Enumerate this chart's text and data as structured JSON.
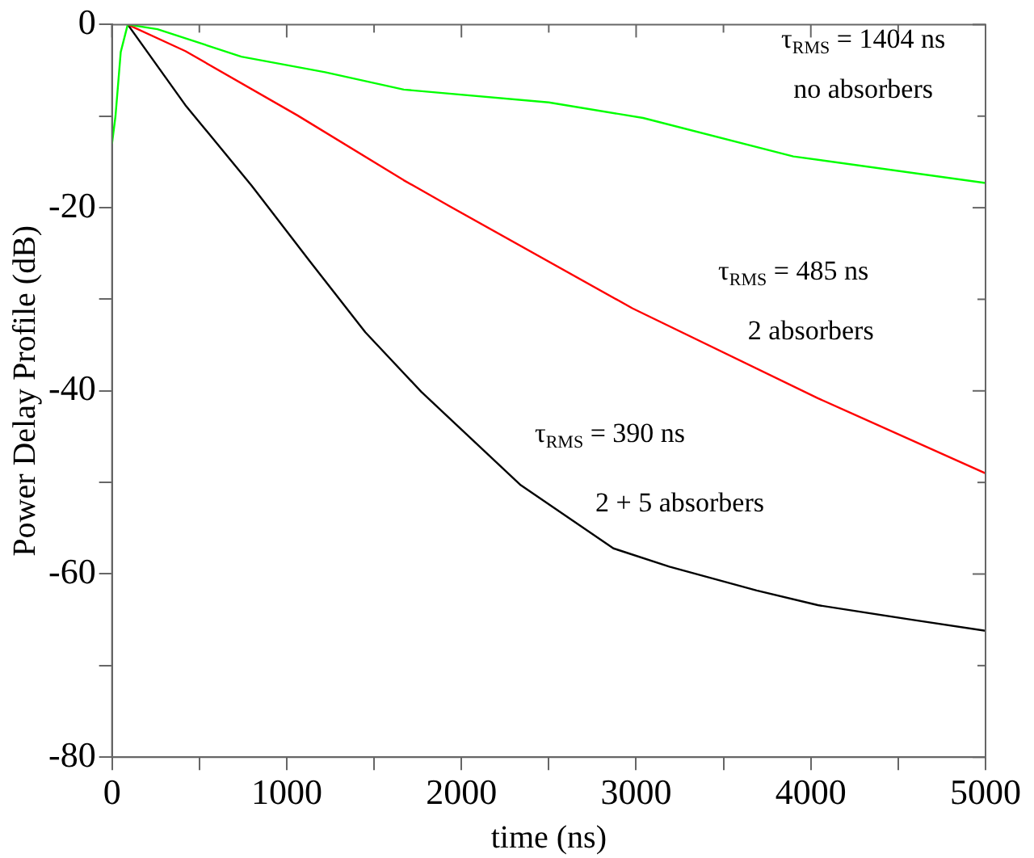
{
  "chart_data": {
    "type": "line",
    "xlabel": "time (ns)",
    "ylabel": "Power Delay Profile (dB)",
    "xlim": [
      0,
      5000
    ],
    "ylim": [
      -80,
      0
    ],
    "xticks": [
      0,
      {
        "value": 500,
        "label": null
      },
      1000,
      {
        "value": 1500,
        "label": null
      },
      2000,
      {
        "value": 2500,
        "label": null
      },
      3000,
      {
        "value": 3500,
        "label": null
      },
      4000,
      {
        "value": 4500,
        "label": null
      },
      5000
    ],
    "yticks": [
      -80,
      {
        "value": -70,
        "label": null
      },
      -60,
      {
        "value": -50,
        "label": null
      },
      -40,
      {
        "value": -30,
        "label": null
      },
      -20,
      {
        "value": -10,
        "label": null
      },
      0
    ],
    "grid": false,
    "legend": false,
    "marker": "none",
    "line_style": "solid",
    "series": [
      {
        "color": "#00ff00",
        "x": [
          0,
          20,
          50,
          90,
          260,
          740,
          1220,
          1670,
          2500,
          3040,
          3900,
          5000
        ],
        "values": [
          -13,
          -10,
          -3,
          0,
          -0.5,
          -3.5,
          -5.2,
          -7.1,
          -8.5,
          -10.2,
          -14.4,
          -17.3
        ]
      },
      {
        "color": "#ff0000",
        "x": [
          90,
          420,
          1060,
          1670,
          1910,
          2980,
          4040,
          5000
        ],
        "values": [
          0,
          -2.9,
          -9.9,
          -17,
          -19.6,
          -31,
          -40.8,
          -49
        ]
      },
      {
        "color": "#000000",
        "x": [
          90,
          420,
          800,
          1130,
          1450,
          1770,
          2340,
          2870,
          3190,
          3690,
          4040,
          4580,
          5000
        ],
        "values": [
          0,
          -8.8,
          -17.6,
          -25.8,
          -33.6,
          -40.1,
          -50.3,
          -57.2,
          -59.2,
          -61.8,
          -63.4,
          -65,
          -66.2
        ]
      }
    ],
    "annotations": [
      "τ$_{RMS}$ = 1404 ns",
      "no absorbers",
      "τ$_{RMS}$ = 485 ns",
      "2 absorbers",
      "τ$_{RMS}$ = 390 ns",
      "2 + 5 absorbers"
    ]
  }
}
